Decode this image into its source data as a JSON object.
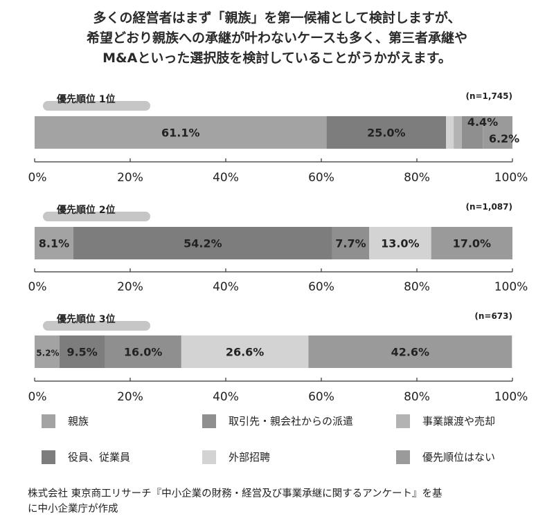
{
  "headline": [
    "多くの経営者はまず「親族」を第一候補として検討しますが、",
    "希望どおり親族への承継が叶わないケースも多く、第三者承継や",
    "M&Aといった選択肢を検討していることがうかがえます。"
  ],
  "colors": {
    "親族": "#a3a3a4",
    "取引先・親会社からの派遣": "#8f8f90",
    "事業譲渡や売却": "#b3b3b4",
    "役員、従業員": "#7d7d7e",
    "外部招聘": "#d3d3d4",
    "優先順位はない": "#9a9a9b"
  },
  "chart_data": [
    {
      "type": "bar",
      "title": "優先順位 1位",
      "n_label": "(n=1,745)",
      "xlim": [
        0,
        100
      ],
      "tick_labels": [
        "0%",
        "20%",
        "40%",
        "60%",
        "80%",
        "100%"
      ],
      "series": [
        {
          "name": "親族",
          "value": 61.1,
          "label": "61.1%"
        },
        {
          "name": "役員、従業員",
          "value": 25.0,
          "label": "25.0%"
        },
        {
          "name": "外部招聘",
          "value": 1.6,
          "label": ""
        },
        {
          "name": "事業譲渡や売却",
          "value": 1.7,
          "label": ""
        },
        {
          "name": "取引先・親会社からの派遣",
          "value": 4.4,
          "label": "4.4%"
        },
        {
          "name": "優先順位はない",
          "value": 6.2,
          "label": "6.2%"
        }
      ]
    },
    {
      "type": "bar",
      "title": "優先順位 2位",
      "n_label": "(n=1,087)",
      "xlim": [
        0,
        100
      ],
      "tick_labels": [
        "0%",
        "20%",
        "40%",
        "60%",
        "80%",
        "100%"
      ],
      "series": [
        {
          "name": "親族",
          "value": 8.1,
          "label": "8.1%"
        },
        {
          "name": "役員、従業員",
          "value": 54.2,
          "label": "54.2%"
        },
        {
          "name": "取引先・親会社からの派遣",
          "value": 7.7,
          "label": "7.7%"
        },
        {
          "name": "外部招聘",
          "value": 13.0,
          "label": "13.0%"
        },
        {
          "name": "優先順位はない",
          "value": 17.0,
          "label": "17.0%"
        }
      ]
    },
    {
      "type": "bar",
      "title": "優先順位 3位",
      "n_label": "(n=673)",
      "xlim": [
        0,
        100
      ],
      "tick_labels": [
        "0%",
        "20%",
        "40%",
        "60%",
        "80%",
        "100%"
      ],
      "series": [
        {
          "name": "親族",
          "value": 5.2,
          "label": "5.2%"
        },
        {
          "name": "役員、従業員",
          "value": 9.5,
          "label": "9.5%"
        },
        {
          "name": "取引先・親会社からの派遣",
          "value": 16.0,
          "label": "16.0%"
        },
        {
          "name": "外部招聘",
          "value": 26.6,
          "label": "26.6%"
        },
        {
          "name": "優先順位はない",
          "value": 42.6,
          "label": "42.6%"
        }
      ]
    }
  ],
  "legend": [
    {
      "name": "親族",
      "label": "親族"
    },
    {
      "name": "取引先・親会社からの派遣",
      "label": "取引先・親会社からの派遣"
    },
    {
      "name": "事業譲渡や売却",
      "label": "事業譲渡や売却"
    },
    {
      "name": "役員、従業員",
      "label": "役員、従業員"
    },
    {
      "name": "外部招聘",
      "label": "外部招聘"
    },
    {
      "name": "優先順位はない",
      "label": "優先順位はない"
    }
  ],
  "source": [
    "株式会社 東京商工リサーチ『中小企業の財務・経営及び事業承継に関するアンケート』を基",
    "に中小企業庁が作成"
  ]
}
